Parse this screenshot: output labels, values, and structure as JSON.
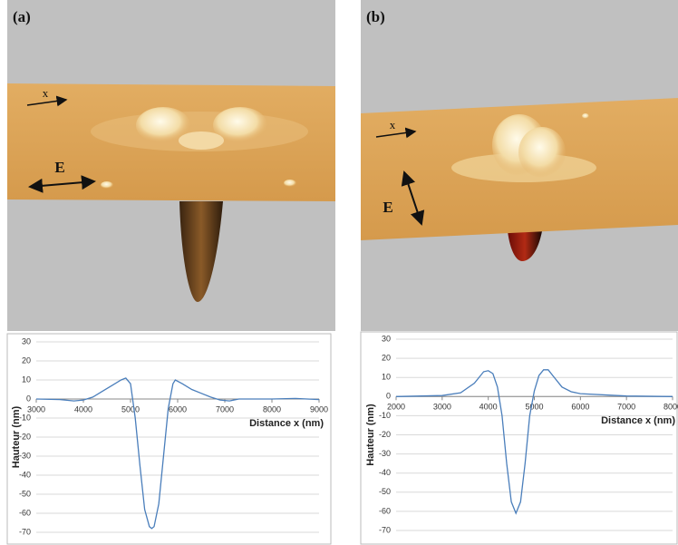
{
  "panels": [
    {
      "label": "(a)",
      "direction_label": "x",
      "field_label": "E"
    },
    {
      "label": "(b)",
      "direction_label": "x",
      "field_label": "E"
    }
  ],
  "chart_data": [
    {
      "type": "line",
      "x_label": "Distance x (nm)",
      "y_label": "Hauteur (nm)",
      "color": "#4a7ebb",
      "grid": true,
      "x": [
        3000,
        3500,
        3800,
        4000,
        4200,
        4400,
        4600,
        4800,
        4900,
        5000,
        5100,
        5200,
        5300,
        5400,
        5450,
        5500,
        5600,
        5700,
        5800,
        5900,
        5950,
        6100,
        6300,
        6500,
        6700,
        6900,
        7100,
        7300,
        8000,
        8500,
        9000
      ],
      "values": [
        0,
        -0.3,
        -1,
        -0.5,
        1,
        4,
        7,
        10,
        11,
        8,
        -10,
        -35,
        -58,
        -67,
        -68,
        -67,
        -55,
        -30,
        -5,
        8,
        10,
        8,
        5,
        3,
        1,
        -0.5,
        -1,
        0,
        0,
        0.3,
        -0.3
      ],
      "xlim": [
        3000,
        9000
      ],
      "xticks": [
        3000,
        4000,
        5000,
        6000,
        7000,
        8000,
        9000
      ],
      "ylim": [
        -70,
        30
      ],
      "yticks": [
        30,
        20,
        10,
        0,
        -10,
        -20,
        -30,
        -40,
        -50,
        -60,
        -70
      ]
    },
    {
      "type": "line",
      "x_label": "Distance x (nm)",
      "y_label": "Hauteur (nm)",
      "color": "#4a7ebb",
      "grid": true,
      "x": [
        2000,
        3000,
        3400,
        3700,
        3900,
        4000,
        4100,
        4200,
        4300,
        4400,
        4500,
        4600,
        4700,
        4800,
        4900,
        5000,
        5100,
        5200,
        5300,
        5400,
        5600,
        5800,
        6000,
        7000,
        8000
      ],
      "values": [
        0,
        0.5,
        2,
        7,
        13,
        13.5,
        12,
        5,
        -10,
        -35,
        -55,
        -61,
        -55,
        -35,
        -10,
        3,
        11,
        14,
        14,
        11,
        5,
        2.5,
        1.5,
        0.3,
        0
      ],
      "xlim": [
        2000,
        8000
      ],
      "xticks": [
        2000,
        3000,
        4000,
        5000,
        6000,
        7000,
        8000
      ],
      "ylim": [
        -70,
        30
      ],
      "yticks": [
        30,
        20,
        10,
        0,
        -10,
        -20,
        -30,
        -40,
        -50,
        -60,
        -70
      ]
    }
  ]
}
